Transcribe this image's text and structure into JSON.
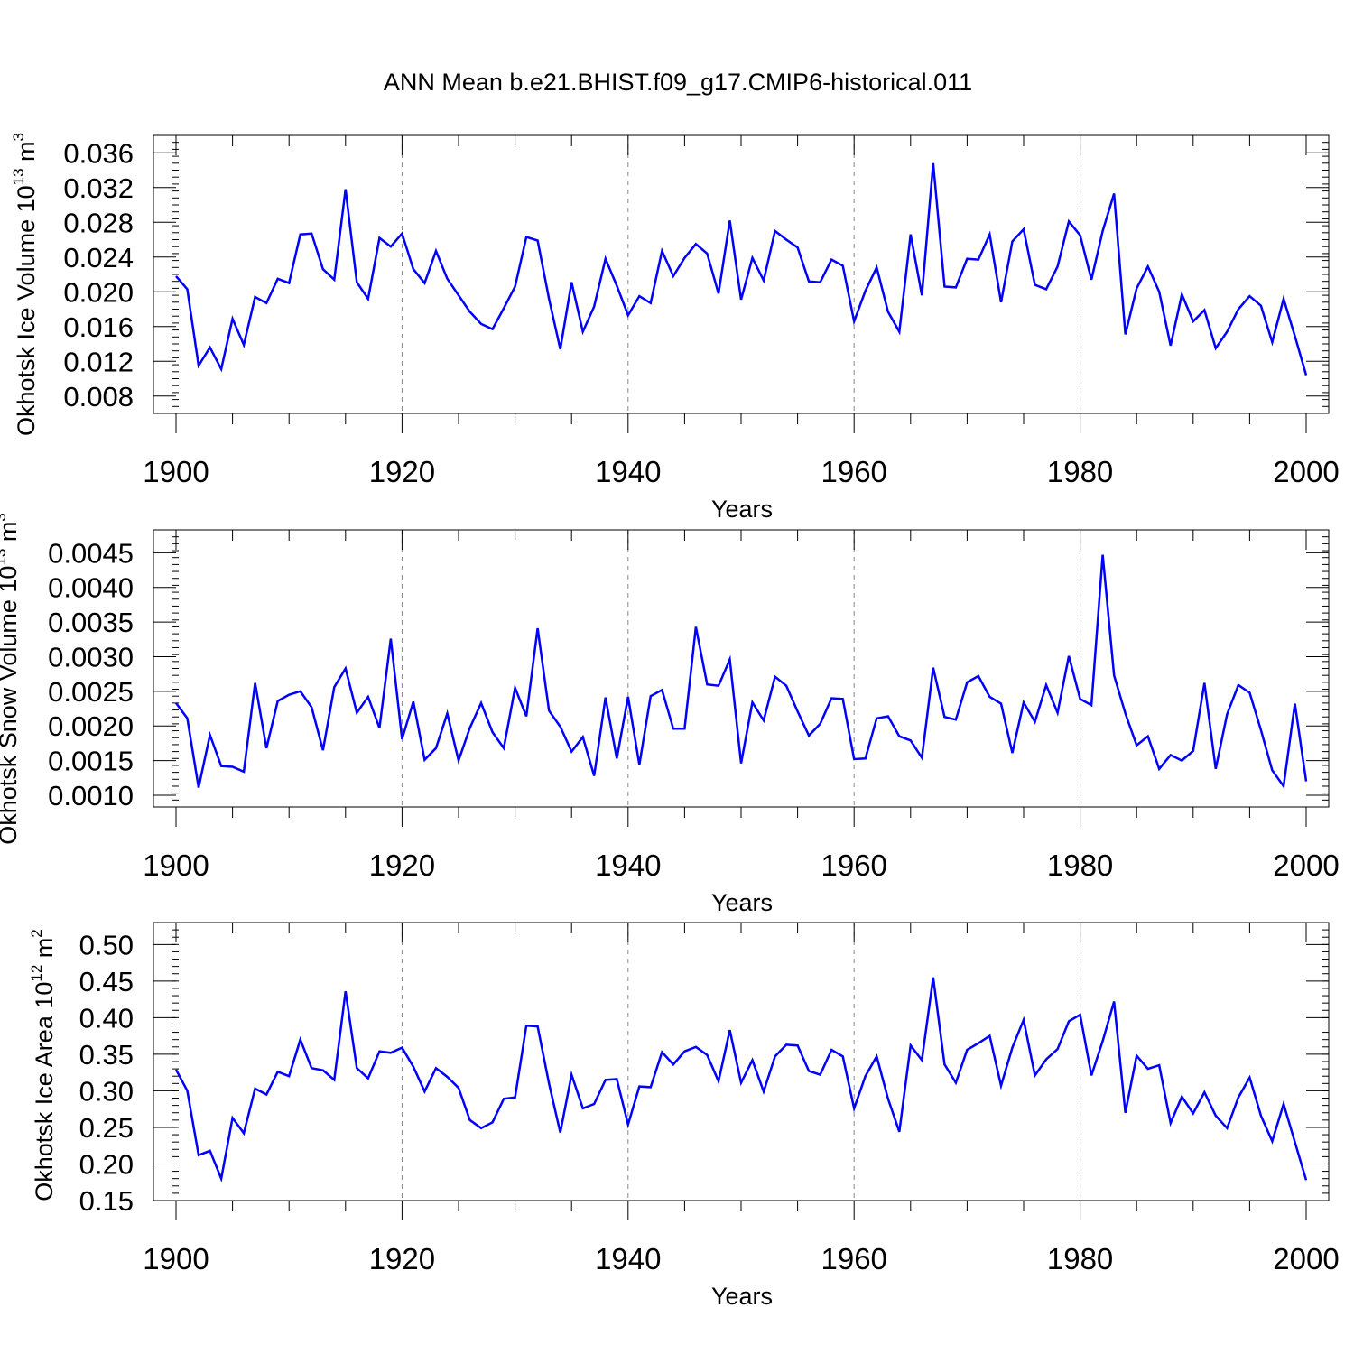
{
  "title": "ANN Mean b.e21.BHIST.f09_g17.CMIP6-historical.011",
  "chart_data": [
    {
      "type": "line",
      "ylabel": "Okhotsk Ice Volume 10",
      "ylabel_exp": "13",
      "ylabel_unit": " m",
      "ylabel_unit_exp": "3",
      "xlabel": "Years",
      "xlim": [
        1900,
        2000
      ],
      "ylim": [
        0.006,
        0.038
      ],
      "xticks": [
        "1900",
        "1920",
        "1940",
        "1960",
        "1980",
        "2000"
      ],
      "yticks": [
        "0.008",
        "0.012",
        "0.016",
        "0.020",
        "0.024",
        "0.028",
        "0.032",
        "0.036"
      ],
      "grid_x": [
        1920,
        1940,
        1960,
        1980
      ],
      "series": [
        {
          "name": "Okhotsk Ice Volume",
          "x_start": 1900,
          "values": [
            0.0218,
            0.0203,
            0.0115,
            0.0136,
            0.0111,
            0.0169,
            0.0139,
            0.0194,
            0.0187,
            0.0215,
            0.021,
            0.0266,
            0.0267,
            0.0226,
            0.0214,
            0.0318,
            0.0211,
            0.0192,
            0.0262,
            0.0252,
            0.0267,
            0.0226,
            0.021,
            0.0247,
            0.0215,
            0.0196,
            0.0177,
            0.0163,
            0.0157,
            0.0181,
            0.0206,
            0.0263,
            0.0259,
            0.0192,
            0.0134,
            0.0211,
            0.0154,
            0.0183,
            0.0238,
            0.0207,
            0.0173,
            0.0195,
            0.0187,
            0.0247,
            0.0218,
            0.0239,
            0.0255,
            0.0244,
            0.0198,
            0.0282,
            0.0191,
            0.0239,
            0.0213,
            0.027,
            0.026,
            0.0251,
            0.0212,
            0.0211,
            0.0237,
            0.023,
            0.0166,
            0.0201,
            0.0228,
            0.0177,
            0.0154,
            0.0266,
            0.0196,
            0.0348,
            0.0206,
            0.0205,
            0.0238,
            0.0237,
            0.0266,
            0.0188,
            0.0258,
            0.0272,
            0.0208,
            0.0203,
            0.0229,
            0.0281,
            0.0265,
            0.0214,
            0.027,
            0.0313,
            0.0151,
            0.0204,
            0.0229,
            0.02,
            0.0138,
            0.0197,
            0.0166,
            0.0179,
            0.0135,
            0.0154,
            0.018,
            0.0195,
            0.0184,
            0.0142,
            0.0192,
            0.0149,
            0.0104
          ]
        }
      ]
    },
    {
      "type": "line",
      "ylabel": "Okhotsk Snow Volume 10",
      "ylabel_exp": "13",
      "ylabel_unit": " m",
      "ylabel_unit_exp": "3",
      "xlabel": "Years",
      "xlim": [
        1900,
        2000
      ],
      "ylim": [
        0.00083,
        0.00483
      ],
      "xticks": [
        "1900",
        "1920",
        "1940",
        "1960",
        "1980",
        "2000"
      ],
      "yticks": [
        "0.0010",
        "0.0015",
        "0.0020",
        "0.0025",
        "0.0030",
        "0.0035",
        "0.0040",
        "0.0045"
      ],
      "grid_x": [
        1920,
        1940,
        1960,
        1980
      ],
      "series": [
        {
          "name": "Okhotsk Snow Volume",
          "x_start": 1900,
          "values": [
            0.00233,
            0.00211,
            0.00111,
            0.00187,
            0.00142,
            0.00141,
            0.00134,
            0.00262,
            0.00168,
            0.00236,
            0.00245,
            0.0025,
            0.00227,
            0.00165,
            0.00256,
            0.00283,
            0.00219,
            0.00242,
            0.00197,
            0.00326,
            0.00181,
            0.00235,
            0.00151,
            0.00168,
            0.00218,
            0.0015,
            0.00197,
            0.00233,
            0.00191,
            0.00168,
            0.00255,
            0.00214,
            0.00341,
            0.00222,
            0.00199,
            0.00163,
            0.00184,
            0.00128,
            0.00241,
            0.00153,
            0.00242,
            0.00144,
            0.00243,
            0.00252,
            0.00196,
            0.00196,
            0.00343,
            0.0026,
            0.00258,
            0.00296,
            0.00146,
            0.00234,
            0.00208,
            0.00271,
            0.00258,
            0.00221,
            0.00186,
            0.00203,
            0.0024,
            0.00239,
            0.00152,
            0.00153,
            0.00211,
            0.00214,
            0.00185,
            0.00179,
            0.00154,
            0.00284,
            0.00213,
            0.00209,
            0.00263,
            0.00272,
            0.00242,
            0.00232,
            0.00161,
            0.00234,
            0.00206,
            0.00259,
            0.00219,
            0.00301,
            0.00239,
            0.0023,
            0.00447,
            0.00273,
            0.00218,
            0.00172,
            0.00185,
            0.00138,
            0.00158,
            0.0015,
            0.00164,
            0.00262,
            0.00138,
            0.00217,
            0.00259,
            0.00248,
            0.00194,
            0.00136,
            0.00113,
            0.00232,
            0.0012
          ]
        }
      ]
    },
    {
      "type": "line",
      "ylabel": "Okhotsk Ice Area 10",
      "ylabel_exp": "12",
      "ylabel_unit": " m",
      "ylabel_unit_exp": "2",
      "xlabel": "Years",
      "xlim": [
        1900,
        2000
      ],
      "ylim": [
        0.15,
        0.53
      ],
      "xticks": [
        "1900",
        "1920",
        "1940",
        "1960",
        "1980",
        "2000"
      ],
      "yticks": [
        "0.15",
        "0.20",
        "0.25",
        "0.30",
        "0.35",
        "0.40",
        "0.45",
        "0.50"
      ],
      "grid_x": [
        1920,
        1940,
        1960,
        1980
      ],
      "series": [
        {
          "name": "Okhotsk Ice Area",
          "x_start": 1900,
          "values": [
            0.329,
            0.3,
            0.212,
            0.218,
            0.18,
            0.263,
            0.242,
            0.303,
            0.295,
            0.326,
            0.32,
            0.37,
            0.331,
            0.328,
            0.315,
            0.436,
            0.331,
            0.317,
            0.354,
            0.352,
            0.359,
            0.333,
            0.299,
            0.331,
            0.319,
            0.304,
            0.26,
            0.249,
            0.257,
            0.289,
            0.291,
            0.389,
            0.388,
            0.31,
            0.243,
            0.322,
            0.276,
            0.282,
            0.315,
            0.316,
            0.254,
            0.306,
            0.305,
            0.353,
            0.336,
            0.354,
            0.36,
            0.349,
            0.313,
            0.383,
            0.311,
            0.342,
            0.299,
            0.347,
            0.363,
            0.362,
            0.327,
            0.322,
            0.356,
            0.347,
            0.276,
            0.32,
            0.347,
            0.289,
            0.244,
            0.362,
            0.342,
            0.455,
            0.336,
            0.311,
            0.356,
            0.365,
            0.375,
            0.307,
            0.359,
            0.397,
            0.321,
            0.343,
            0.357,
            0.395,
            0.404,
            0.321,
            0.368,
            0.422,
            0.27,
            0.348,
            0.33,
            0.335,
            0.256,
            0.292,
            0.269,
            0.298,
            0.266,
            0.249,
            0.291,
            0.318,
            0.266,
            0.231,
            0.282,
            0.23,
            0.178
          ]
        }
      ]
    }
  ]
}
